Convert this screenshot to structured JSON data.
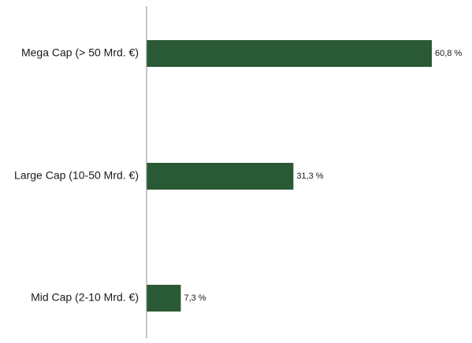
{
  "chart_data": {
    "type": "bar",
    "orientation": "horizontal",
    "categories": [
      "Mega Cap (> 50 Mrd. €)",
      "Large Cap (10-50 Mrd. €)",
      "Mid Cap (2-10 Mrd. €)"
    ],
    "values": [
      60.8,
      31.3,
      7.3
    ],
    "value_labels": [
      "60,8 %",
      "31,3 %",
      "7,3 %"
    ],
    "title": "",
    "xlabel": "",
    "ylabel": "",
    "xlim": [
      0,
      60.8
    ],
    "grid": false,
    "legend": "none",
    "bar_color": "#2a5a35",
    "axis_color": "#8c8c8c"
  }
}
